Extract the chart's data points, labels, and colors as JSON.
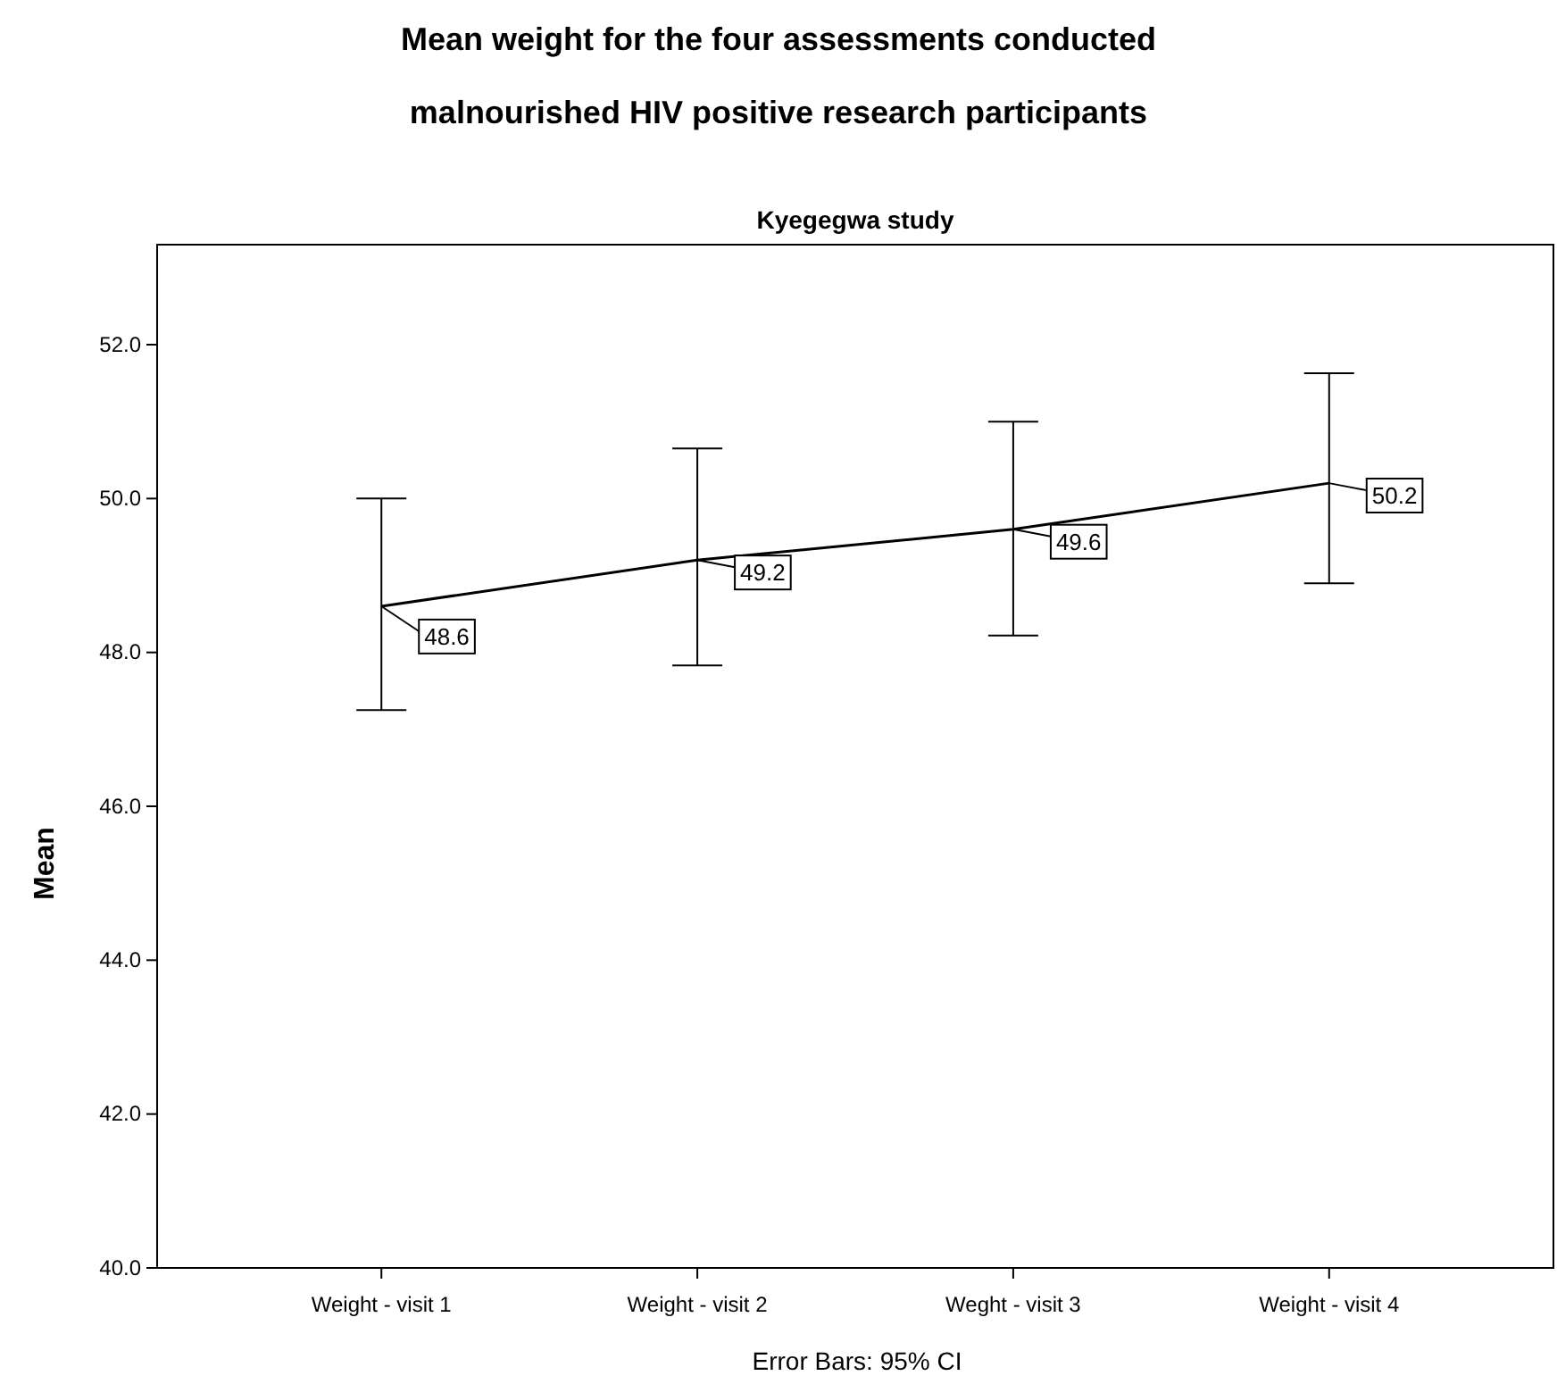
{
  "chart_data": {
    "type": "line",
    "title": "Mean weight for the four assessments conducted\nmalnourished HIV positive research participants",
    "subtitle": "Kyegegwa study",
    "ylabel": "Mean",
    "categories": [
      "Weight - visit 1",
      "Weight - visit 2",
      "Weght - visit 3",
      "Weight - visit 4"
    ],
    "series": [
      {
        "color": "#000000",
        "values": [
          48.6,
          49.2,
          49.6,
          50.2
        ],
        "errors": [
          [
            47.25,
            50.0
          ],
          [
            47.83,
            50.65
          ],
          [
            48.22,
            51.0
          ],
          [
            48.9,
            51.63
          ]
        ]
      }
    ],
    "ylim": [
      40,
      53.3
    ],
    "yticks": [
      {
        "value": 40,
        "label": "40.0"
      },
      {
        "value": 42,
        "label": "42.0"
      },
      {
        "value": 44,
        "label": "44.0"
      },
      {
        "value": 46,
        "label": "46.0"
      },
      {
        "value": 48,
        "label": "48.0"
      },
      {
        "value": 50,
        "label": "50.0"
      },
      {
        "value": 52,
        "label": "52.0"
      }
    ],
    "data_labels": true,
    "marker": "none",
    "grid": false,
    "annotations": [
      "Error Bars: 95% CI"
    ]
  }
}
